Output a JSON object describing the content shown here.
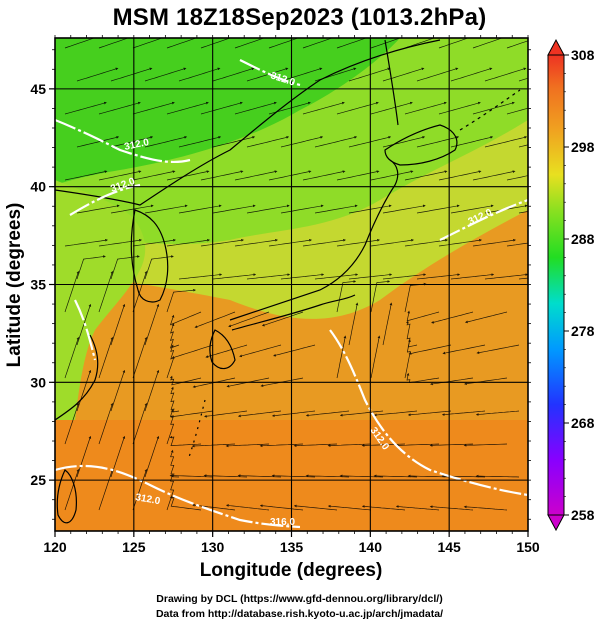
{
  "title": "MSM 18Z18Sep2023 (1013.2hPa)",
  "map": {
    "xlabel": "Longitude (degrees)",
    "ylabel": "Latitude  (degrees)",
    "lon_range": [
      120,
      150
    ],
    "lat_range": [
      22.4,
      47.6
    ],
    "lon_ticks": [
      "120",
      "125",
      "130",
      "135",
      "140",
      "145",
      "150"
    ],
    "lat_ticks": [
      "25",
      "30",
      "35",
      "40",
      "45"
    ],
    "contour_labels": [
      "312.0",
      "312.0",
      "312.0",
      "312.0",
      "312.0",
      "316.0",
      "312.0"
    ],
    "colors": {
      "cool_green": "#3fcf1f",
      "light_green": "#8fe02a",
      "yellow_green": "#c8e030",
      "warm_orange": "#e8a020",
      "deep_orange": "#f08418",
      "contour": "#ffffff",
      "land_outline": "#000000"
    }
  },
  "colorbar": {
    "labels": [
      "308",
      "298",
      "288",
      "278",
      "268",
      "258"
    ],
    "range": [
      258,
      308
    ]
  },
  "credits": {
    "line1": "Drawing by DCL (https://www.gfd-dennou.org/library/dcl/)",
    "line2": "Data from http://database.rish.kyoto-u.ac.jp/arch/jmadata/"
  }
}
